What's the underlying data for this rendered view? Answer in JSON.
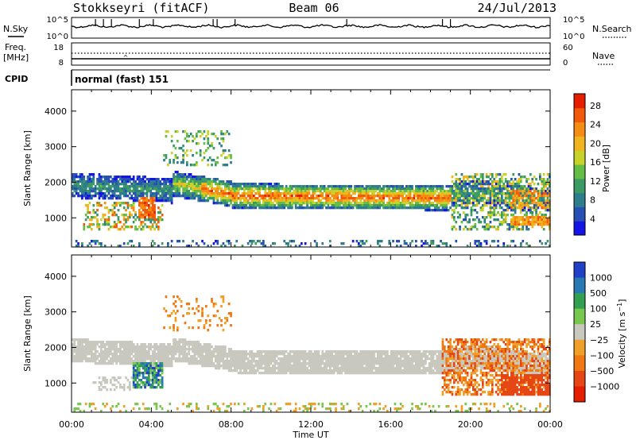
{
  "header": {
    "station": "Stokkseyri (fitACF)",
    "beam": "Beam 06",
    "date": "24/Jul/2013"
  },
  "noise_panel": {
    "left_label": "N.Sky",
    "right_label": "N.Search",
    "left_ticks": [
      "10^5",
      "10^0"
    ],
    "right_ticks": [
      "10^5",
      "10^0"
    ]
  },
  "freq_panel": {
    "left_label_1": "Freq.",
    "left_label_2": "[MHz]",
    "right_label": "Nave",
    "left_ticks": [
      "18",
      "8"
    ],
    "right_ticks": [
      "60",
      "0"
    ]
  },
  "cpid": {
    "label": "CPID",
    "value": "normal (fast) 151"
  },
  "chart_data": [
    {
      "type": "heatmap",
      "ylabel": "Slant Range [km]",
      "ylim": [
        180,
        4600
      ],
      "y_ticks": [
        "1000",
        "2000",
        "3000",
        "4000"
      ],
      "x_ticks": [
        "00:00",
        "04:00",
        "08:00",
        "12:00",
        "16:00",
        "20:00",
        "00:00"
      ],
      "xlim_hours": [
        0,
        24
      ],
      "colorbar": {
        "label": "Power [dB]",
        "ticks": [
          "4",
          "8",
          "12",
          "16",
          "20",
          "24",
          "28"
        ],
        "colors": [
          "#1414e6",
          "#2850b4",
          "#2e7d8c",
          "#3c9b64",
          "#64be46",
          "#c8d228",
          "#f0b41e",
          "#f58c14",
          "#f05a0a",
          "#e61e00"
        ]
      },
      "features": [
        {
          "name": "main echo band",
          "hours": [
            6,
            20
          ],
          "range_km": [
            1500,
            1800
          ],
          "power_db": 26
        },
        {
          "name": "early band",
          "hours": [
            0,
            5
          ],
          "range_km": [
            1800,
            2400
          ],
          "power_db": 10
        },
        {
          "name": "late echoes",
          "hours": [
            19,
            24
          ],
          "range_km": [
            800,
            2200
          ],
          "power_db": 14
        }
      ]
    },
    {
      "type": "heatmap",
      "ylabel": "Slant Range [km]",
      "ylim": [
        180,
        4600
      ],
      "y_ticks": [
        "1000",
        "2000",
        "3000",
        "4000"
      ],
      "x_ticks": [
        "00:00",
        "04:00",
        "08:00",
        "12:00",
        "16:00",
        "20:00",
        "00:00"
      ],
      "xlabel": "Time UT",
      "colorbar": {
        "label": "Velocity [m s^-1]",
        "ticks": [
          "1000",
          "500",
          "100",
          "25",
          "−25",
          "−100",
          "−500",
          "−1000"
        ],
        "colors": [
          "#2040c8",
          "#2878b4",
          "#32a050",
          "#78c850",
          "#c8c8be",
          "#f0a028",
          "#f07814",
          "#e64614",
          "#e61e00"
        ]
      },
      "features": [
        {
          "name": "low-velocity band",
          "hours": [
            0,
            19
          ],
          "range_km": [
            1600,
            2300
          ],
          "velocity_ms": 0
        },
        {
          "name": "positive velocity patch",
          "hours": [
            3,
            4.5
          ],
          "range_km": [
            900,
            1600
          ],
          "velocity_ms": 600
        },
        {
          "name": "negative velocity region",
          "hours": [
            18.5,
            24
          ],
          "range_km": [
            600,
            2200
          ],
          "velocity_ms": -500
        }
      ]
    }
  ]
}
